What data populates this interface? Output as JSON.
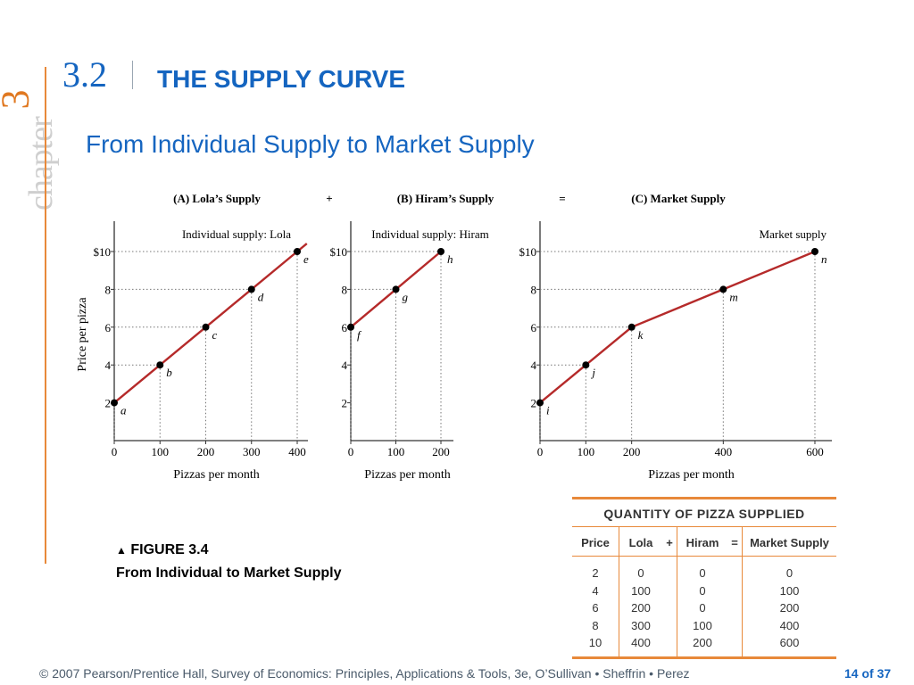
{
  "side": {
    "word": "chapter",
    "number": "3"
  },
  "section": {
    "number": "3.2",
    "separator": "|",
    "title": "THE SUPPLY CURVE"
  },
  "subtitle": "From Individual Supply to Market Supply",
  "panel_headers": {
    "plus": "+",
    "equals": "="
  },
  "shared_labels": {
    "ylabel": "Price per pizza",
    "xlabel": "Pizzas per month"
  },
  "figure": {
    "marker": "▲",
    "label": "FIGURE 3.4",
    "caption": "From Individual to Market Supply"
  },
  "table": {
    "title": "QUANTITY OF PIZZA SUPPLIED",
    "headers": {
      "price": "Price",
      "lola": "Lola",
      "plus": "+",
      "hiram": "Hiram",
      "equals": "=",
      "market": "Market Supply"
    },
    "rows": [
      {
        "price": "2",
        "lola": "0",
        "hiram": "0",
        "market": "0"
      },
      {
        "price": "4",
        "lola": "100",
        "hiram": "0",
        "market": "100"
      },
      {
        "price": "6",
        "lola": "200",
        "hiram": "0",
        "market": "200"
      },
      {
        "price": "8",
        "lola": "300",
        "hiram": "100",
        "market": "400"
      },
      {
        "price": "10",
        "lola": "400",
        "hiram": "200",
        "market": "600"
      }
    ]
  },
  "footer": {
    "text": "© 2007 Pearson/Prentice Hall, Survey of Economics: Principles, Applications & Tools, 3e, O’Sullivan • Sheffrin • Perez",
    "page": "14 of 37"
  },
  "colors": {
    "line": "#b52a2a",
    "accent": "#e8893a",
    "title": "#1565c0",
    "point": "#000000"
  },
  "chart_data": [
    {
      "type": "line",
      "title": "(A) Lola’s Supply",
      "series": [
        {
          "name": "Individual supply: Lola"
        }
      ],
      "points": [
        {
          "x": 0,
          "y": 2,
          "label": "a"
        },
        {
          "x": 100,
          "y": 4,
          "label": "b"
        },
        {
          "x": 200,
          "y": 6,
          "label": "c"
        },
        {
          "x": 300,
          "y": 8,
          "label": "d"
        },
        {
          "x": 400,
          "y": 10,
          "label": "e"
        }
      ],
      "xticks": [
        "0",
        "100",
        "200",
        "300",
        "400"
      ],
      "yticks": [
        "2",
        "4",
        "6",
        "8",
        "$10"
      ],
      "xlim": [
        0,
        420
      ],
      "ylim": [
        0,
        11.5
      ],
      "xlabel": "Pizzas per month",
      "ylabel": "Price per pizza"
    },
    {
      "type": "line",
      "title": "(B) Hiram’s Supply",
      "series": [
        {
          "name": "Individual supply: Hiram"
        }
      ],
      "points": [
        {
          "x": 0,
          "y": 6,
          "label": "f"
        },
        {
          "x": 100,
          "y": 8,
          "label": "g"
        },
        {
          "x": 200,
          "y": 10,
          "label": "h"
        }
      ],
      "xticks": [
        "0",
        "100",
        "200"
      ],
      "yticks": [
        "2",
        "4",
        "6",
        "8",
        "$10"
      ],
      "xlim": [
        0,
        220
      ],
      "ylim": [
        0,
        11.5
      ],
      "xlabel": "Pizzas per month",
      "ylabel": ""
    },
    {
      "type": "line",
      "title": "(C) Market Supply",
      "series": [
        {
          "name": "Market supply"
        }
      ],
      "points": [
        {
          "x": 0,
          "y": 2,
          "label": "i"
        },
        {
          "x": 100,
          "y": 4,
          "label": "j"
        },
        {
          "x": 200,
          "y": 6,
          "label": "k"
        },
        {
          "x": 400,
          "y": 8,
          "label": "m"
        },
        {
          "x": 600,
          "y": 10,
          "label": "n"
        }
      ],
      "xticks": [
        "0",
        "100",
        "200",
        "400",
        "600"
      ],
      "yticks": [
        "2",
        "4",
        "6",
        "8",
        "$10"
      ],
      "xlim": [
        0,
        620
      ],
      "ylim": [
        0,
        11.5
      ],
      "xlabel": "Pizzas per month",
      "ylabel": ""
    }
  ]
}
